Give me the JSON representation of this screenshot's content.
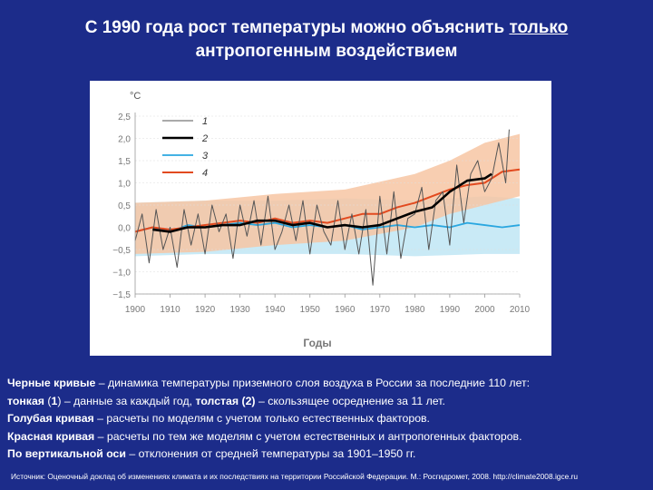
{
  "slide": {
    "title_part1": "С 1990 года рост температуры можно объяснить ",
    "title_underlined": "только",
    "title_part2": "антропогенным воздействием",
    "background_color": "#1c2c8a"
  },
  "caption": {
    "line1_bold": "Черные кривые",
    "line1_rest": " – динамика температуры приземного слоя воздуха в России за последние 110 лет:",
    "line2_a_bold": "тонкая",
    "line2_b": " (",
    "line2_c_bold": "1",
    "line2_d": ") – данные за каждый год, ",
    "line2_e_bold": "толстая (2)",
    "line2_f": " – скользящее осреднение за 11 лет.",
    "line3_bold": "Голубая кривая",
    "line3_rest": " – расчеты по моделям с учетом только естественных факторов.",
    "line4_bold": "Красная кривая",
    "line4_rest": " – расчеты по тем же моделям с учетом естественных и антропогенных факторов.",
    "line5_bold": "По вертикальной оси",
    "line5_rest": " – отклонения от средней температуры за 1901–1950 гг."
  },
  "source": {
    "text": "Источник: Оценочный доклад об изменениях климата и их последствиях на территории Российской Федерации. М.: Росгидромет, 2008. http://climate2008.igce.ru"
  },
  "chart_data": {
    "type": "line",
    "title": "",
    "xlabel": "Годы",
    "ylabel": "°C",
    "xlim": [
      1900,
      2010
    ],
    "ylim": [
      -1.5,
      2.5
    ],
    "xticks": [
      "1900",
      "1910",
      "1920",
      "1930",
      "1940",
      "1950",
      "1960",
      "1970",
      "1980",
      "1990",
      "2000",
      "2010"
    ],
    "yticks": [
      "2,5",
      "2,0",
      "1,5",
      "1,0",
      "0,5",
      "0,0",
      "−0,5",
      "−1,0",
      "−1,5"
    ],
    "legend_position": "top-center",
    "series": [
      {
        "name": "1",
        "description": "annual observed",
        "color": "#555555",
        "x": [
          1900,
          1902,
          1904,
          1906,
          1908,
          1910,
          1912,
          1914,
          1916,
          1918,
          1920,
          1922,
          1924,
          1926,
          1928,
          1930,
          1932,
          1934,
          1936,
          1938,
          1940,
          1942,
          1944,
          1946,
          1948,
          1950,
          1952,
          1954,
          1956,
          1958,
          1960,
          1962,
          1964,
          1966,
          1968,
          1970,
          1972,
          1974,
          1976,
          1978,
          1980,
          1982,
          1984,
          1986,
          1988,
          1990,
          1992,
          1994,
          1996,
          1998,
          2000,
          2002,
          2004,
          2006,
          2007
        ],
        "y": [
          -0.3,
          0.3,
          -0.8,
          0.4,
          -0.5,
          0.0,
          -0.9,
          0.4,
          -0.4,
          0.3,
          -0.6,
          0.5,
          -0.1,
          0.3,
          -0.7,
          0.5,
          -0.2,
          0.6,
          -0.4,
          0.7,
          -0.5,
          -0.1,
          0.5,
          -0.3,
          0.6,
          -0.6,
          0.5,
          -0.1,
          -0.4,
          0.6,
          -0.5,
          0.3,
          -0.6,
          0.4,
          -1.3,
          0.7,
          -0.6,
          0.8,
          -0.7,
          0.2,
          0.3,
          0.9,
          -0.5,
          0.6,
          0.8,
          -0.4,
          1.4,
          0.1,
          1.2,
          1.5,
          0.8,
          1.1,
          1.9,
          1.0,
          2.2
        ]
      },
      {
        "name": "2",
        "description": "11-year running mean",
        "color": "#000000",
        "x": [
          1905,
          1910,
          1915,
          1920,
          1925,
          1930,
          1935,
          1940,
          1945,
          1950,
          1955,
          1960,
          1965,
          1970,
          1975,
          1980,
          1985,
          1990,
          1995,
          2000,
          2002
        ],
        "y": [
          -0.05,
          -0.1,
          0.0,
          0.0,
          0.05,
          0.05,
          0.15,
          0.15,
          0.05,
          0.1,
          0.0,
          0.05,
          0.0,
          0.05,
          0.2,
          0.35,
          0.45,
          0.8,
          1.05,
          1.1,
          1.2
        ]
      },
      {
        "name": "3",
        "description": "models, natural factors only",
        "color": "#2aa7e0",
        "x": [
          1900,
          1905,
          1910,
          1915,
          1920,
          1925,
          1930,
          1935,
          1940,
          1945,
          1950,
          1955,
          1960,
          1965,
          1970,
          1975,
          1980,
          1985,
          1990,
          1995,
          2000,
          2005,
          2010
        ],
        "y": [
          -0.1,
          0.0,
          -0.1,
          0.05,
          0.0,
          0.05,
          0.1,
          0.05,
          0.1,
          0.0,
          0.05,
          0.0,
          0.05,
          -0.05,
          0.0,
          0.05,
          0.0,
          0.05,
          0.0,
          0.1,
          0.05,
          0.0,
          0.05
        ]
      },
      {
        "name": "4",
        "description": "models, natural and anthropogenic factors",
        "color": "#e24a1f",
        "x": [
          1900,
          1905,
          1910,
          1915,
          1920,
          1925,
          1930,
          1935,
          1940,
          1945,
          1950,
          1955,
          1960,
          1965,
          1970,
          1975,
          1980,
          1985,
          1990,
          1995,
          2000,
          2005,
          2010
        ],
        "y": [
          -0.1,
          0.0,
          -0.05,
          0.0,
          0.05,
          0.1,
          0.15,
          0.1,
          0.2,
          0.1,
          0.15,
          0.1,
          0.2,
          0.3,
          0.3,
          0.45,
          0.55,
          0.7,
          0.85,
          0.95,
          1.0,
          1.25,
          1.3
        ]
      }
    ],
    "bands": [
      {
        "series": "3",
        "color": "#bfe6f5",
        "x": [
          1900,
          1920,
          1940,
          1960,
          1980,
          2000,
          2010
        ],
        "low": [
          -0.65,
          -0.6,
          -0.6,
          -0.6,
          -0.65,
          -0.6,
          -0.6
        ],
        "high": [
          0.55,
          0.6,
          0.6,
          0.65,
          0.6,
          0.7,
          0.65
        ]
      },
      {
        "series": "4",
        "color": "#f7c6a3",
        "x": [
          1900,
          1920,
          1940,
          1960,
          1980,
          1990,
          2000,
          2010
        ],
        "low": [
          -0.6,
          -0.55,
          -0.4,
          -0.3,
          0.0,
          0.3,
          0.5,
          0.7
        ],
        "high": [
          0.55,
          0.6,
          0.75,
          0.85,
          1.2,
          1.5,
          1.9,
          2.1
        ]
      }
    ]
  }
}
